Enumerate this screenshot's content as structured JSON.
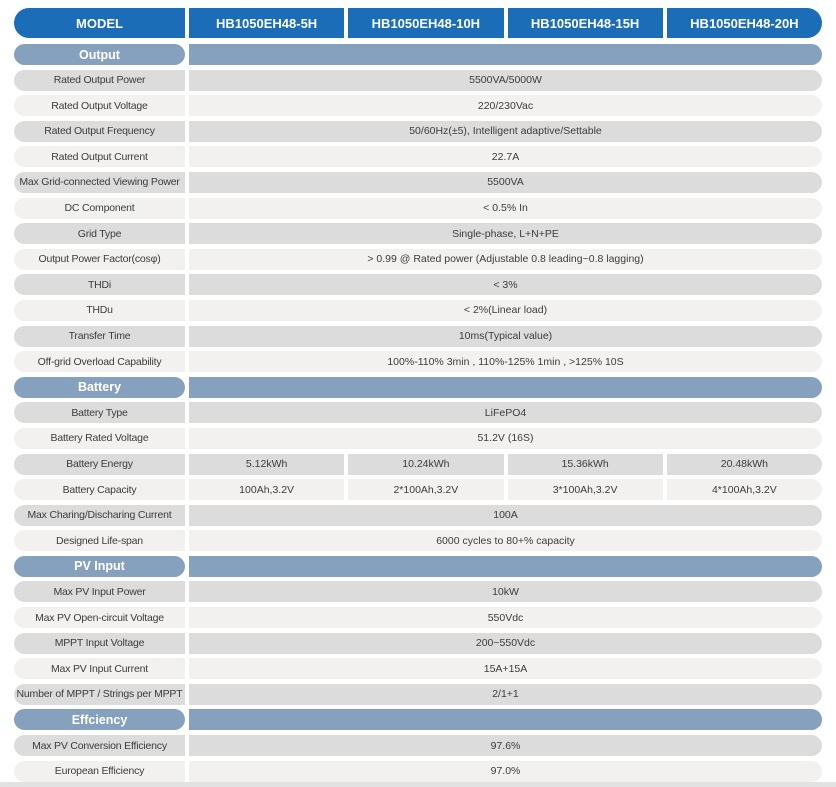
{
  "header": {
    "model_label": "MODEL",
    "models": [
      "HB1050EH48-5H",
      "HB1050EH48-10H",
      "HB1050EH48-15H",
      "HB1050EH48-20H"
    ]
  },
  "colors": {
    "header_blue": "#1a6db6",
    "section_blue": "#86a1bd",
    "row_dark_gray": "#dcdcdc",
    "row_light_gray": "#f2f1f0",
    "text_dark": "#3c3c3c",
    "footer_strip": "#e2e2e2"
  },
  "sections": [
    {
      "title": "Output",
      "rows": [
        {
          "label": "Rated Output Power",
          "value": "5500VA/5000W"
        },
        {
          "label": "Rated Output Voltage",
          "value": "220/230Vac"
        },
        {
          "label": "Rated Output Frequency",
          "value": "50/60Hz(±5),  Intelligent adaptive/Settable"
        },
        {
          "label": "Rated Output Current",
          "value": "22.7A"
        },
        {
          "label": "Max Grid-connected Viewing Power",
          "value": "5500VA"
        },
        {
          "label": "DC Component",
          "value": "< 0.5% In"
        },
        {
          "label": "Grid Type",
          "value": "Single-phase,  L+N+PE"
        },
        {
          "label": "Output Power Factor(cosφ)",
          "value": "> 0.99 @ Rated power  (Adjustable 0.8 leading~0.8 lagging)"
        },
        {
          "label": "THDi",
          "value": "< 3%"
        },
        {
          "label": "THDu",
          "value": "< 2%(Linear load)"
        },
        {
          "label": "Transfer Time",
          "value": "10ms(Typical value)"
        },
        {
          "label": "Off-grid Overload Capability",
          "value": "100%-110% 3min , 110%-125% 1min , >125% 10S"
        }
      ]
    },
    {
      "title": "Battery",
      "rows": [
        {
          "label": "Battery Type",
          "value": "LiFePO4"
        },
        {
          "label": "Battery Rated Voltage",
          "value": "51.2V  (16S)"
        },
        {
          "label": "Battery Energy",
          "values": [
            "5.12kWh",
            "10.24kWh",
            "15.36kWh",
            "20.48kWh"
          ]
        },
        {
          "label": "Battery Capacity",
          "values": [
            "100Ah,3.2V",
            "2*100Ah,3.2V",
            "3*100Ah,3.2V",
            "4*100Ah,3.2V"
          ]
        },
        {
          "label": "Max Charing/Discharing Current",
          "value": "100A"
        },
        {
          "label": "Designed Life-span",
          "value": "6000 cycles to 80+% capacity"
        }
      ]
    },
    {
      "title": "PV Input",
      "rows": [
        {
          "label": "Max PV Input Power",
          "value": "10kW"
        },
        {
          "label": "Max PV Open-circuit Voltage",
          "value": "550Vdc"
        },
        {
          "label": "MPPT Input Voltage",
          "value": "200~550Vdc"
        },
        {
          "label": "Max PV Input Current",
          "value": "15A+15A"
        },
        {
          "label": "Number of MPPT / Strings per MPPT",
          "value": "2/1+1"
        }
      ]
    },
    {
      "title": "Effciency",
      "rows": [
        {
          "label": "Max PV Conversion Efficiency",
          "value": "97.6%"
        },
        {
          "label": "European Efficiency",
          "value": "97.0%"
        }
      ]
    }
  ]
}
